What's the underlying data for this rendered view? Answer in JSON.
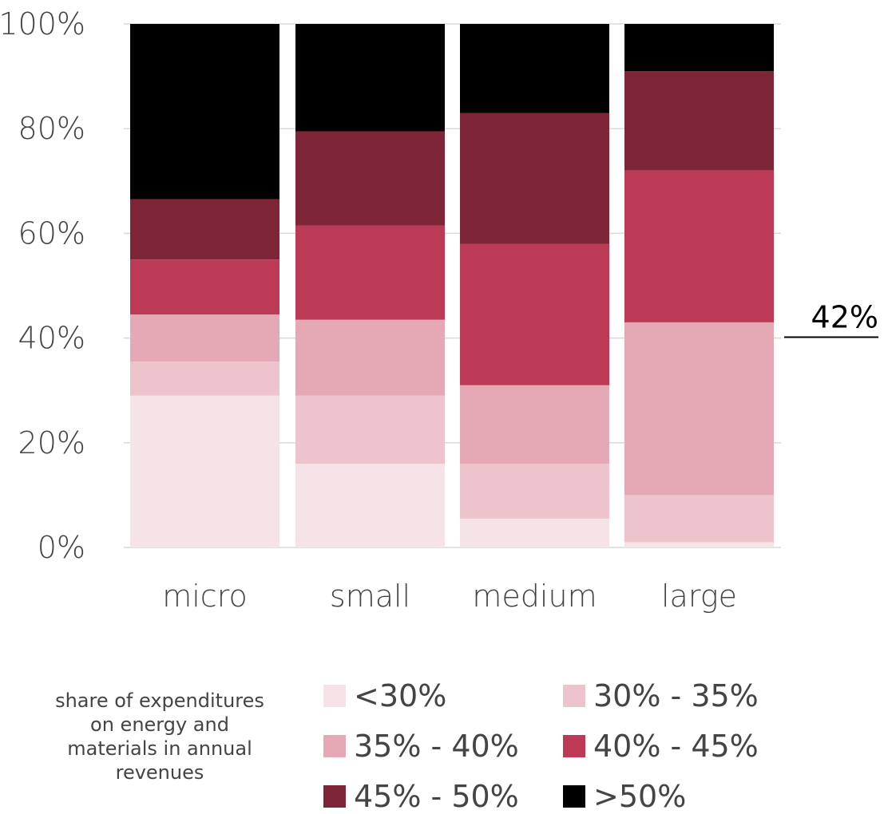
{
  "chart_data": {
    "type": "bar",
    "stacked": true,
    "categories": [
      "micro",
      "small",
      "medium",
      "large"
    ],
    "series": [
      {
        "name": "<30%",
        "color": "#f5e3e7",
        "values": [
          29,
          16,
          5.5,
          1
        ]
      },
      {
        "name": "30% - 35%",
        "color": "#edc4cb",
        "values": [
          6.5,
          13,
          10.5,
          9
        ]
      },
      {
        "name": "35% - 40%",
        "color": "#e4a9b4",
        "values": [
          9,
          14.5,
          15,
          33
        ]
      },
      {
        "name": "40% - 45%",
        "color": "#bd3a56",
        "values": [
          10.5,
          18,
          27,
          29
        ]
      },
      {
        "name": "45% - 50%",
        "color": "#7e2638",
        "values": [
          11.5,
          18,
          25,
          19
        ]
      },
      {
        "name": ">50%",
        "color": "#000000",
        "values": [
          33.5,
          20.5,
          17,
          9
        ]
      }
    ],
    "yticks": [
      "0%",
      "20%",
      "40%",
      "60%",
      "80%",
      "100%"
    ],
    "ylim": [
      0,
      100
    ],
    "grid": true,
    "annotation": {
      "label": "42%",
      "value": 42
    },
    "legend": {
      "title": "share of expenditures on energy and materials in annual revenues",
      "placement": "bottom"
    }
  }
}
